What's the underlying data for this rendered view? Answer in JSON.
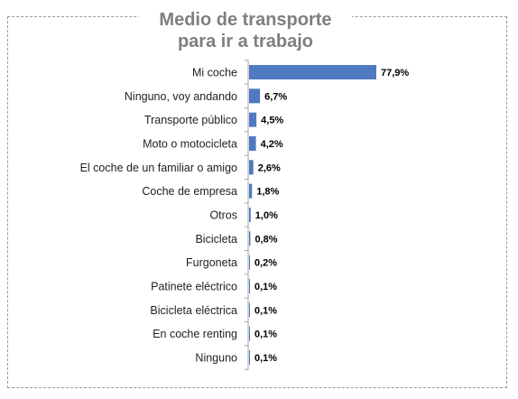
{
  "chart_data": {
    "type": "bar",
    "orientation": "horizontal",
    "title_lines": [
      "Medio de transporte",
      "para ir a trabajo"
    ],
    "categories": [
      "Mi coche",
      "Ninguno, voy andando",
      "Transporte público",
      "Moto o motocicleta",
      "El coche de un familiar o amigo",
      "Coche de empresa",
      "Otros",
      "Bicicleta",
      "Furgoneta",
      "Patinete eléctrico",
      "Bicicleta eléctrica",
      "En coche renting",
      "Ninguno"
    ],
    "values": [
      77.9,
      6.7,
      4.5,
      4.2,
      2.6,
      1.8,
      1.0,
      0.8,
      0.2,
      0.1,
      0.1,
      0.1,
      0.1
    ],
    "value_labels": [
      "77,9%",
      "6,7%",
      "4,5%",
      "4,2%",
      "2,6%",
      "1,8%",
      "1,0%",
      "0,8%",
      "0,2%",
      "0,1%",
      "0,1%",
      "0,1%",
      "0,1%"
    ],
    "xlim": [
      0,
      80
    ],
    "bar_color": "#4f7ac0",
    "axis_color": "#a6a6a6",
    "grid": false,
    "legend": "none"
  }
}
